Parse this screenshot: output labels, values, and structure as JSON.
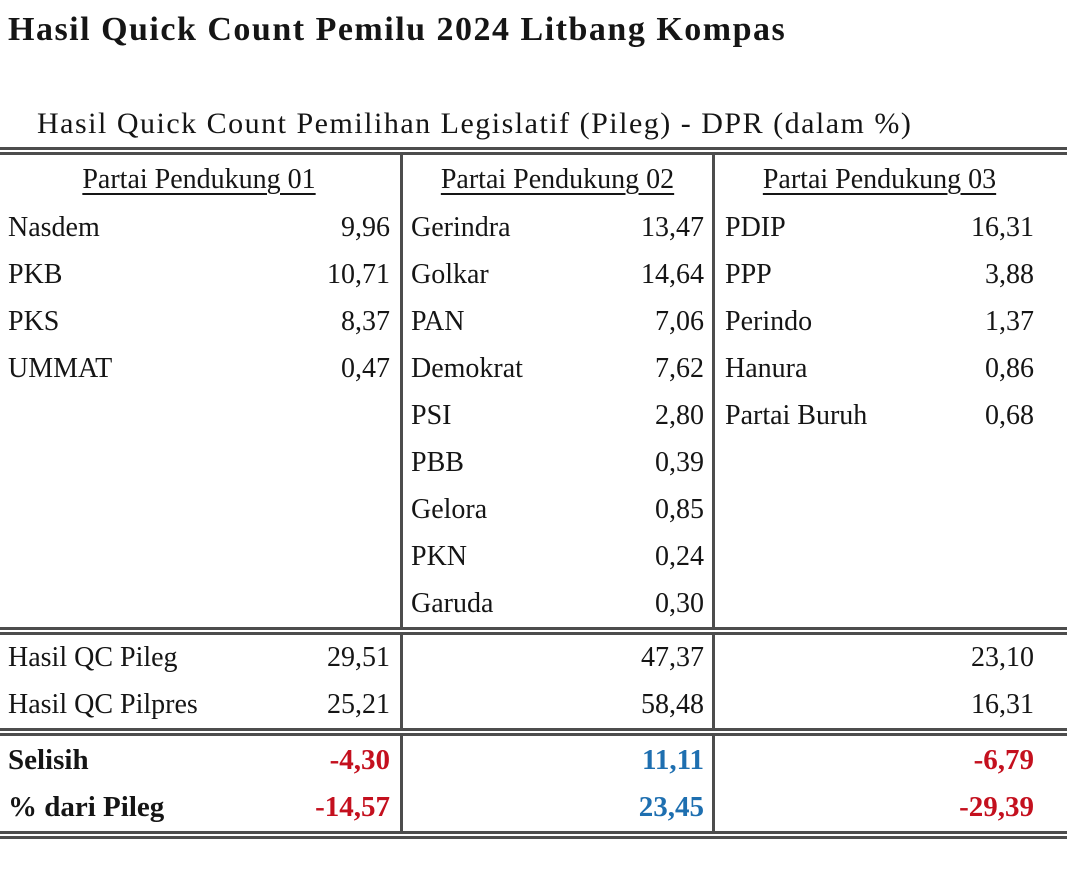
{
  "page_title": "Hasil Quick Count Pemilu 2024 Litbang Kompas",
  "table_title": "Hasil Quick Count Pemilihan Legislatif (Pileg) - DPR (dalam %)",
  "summary_labels": {
    "qc_pileg": "Hasil QC Pileg",
    "qc_pilpres": "Hasil QC Pilpres",
    "selisih": "Selisih",
    "pct_dari_pileg": "% dari Pileg"
  },
  "colors": {
    "negative": "#c4101e",
    "positive": "#1e6fb0",
    "rule": "#4d4d4d",
    "text": "#151515"
  },
  "columns": [
    {
      "header": "Partai Pendukung 01",
      "parties": [
        {
          "name": "Nasdem",
          "value": "9,96"
        },
        {
          "name": "PKB",
          "value": "10,71"
        },
        {
          "name": "PKS",
          "value": "8,37"
        },
        {
          "name": "UMMAT",
          "value": "0,47"
        }
      ],
      "qc_pileg": "29,51",
      "qc_pilpres": "25,21",
      "selisih": "-4,30",
      "pct_dari_pileg": "-14,57",
      "trend": "negative"
    },
    {
      "header": "Partai Pendukung 02",
      "parties": [
        {
          "name": "Gerindra",
          "value": "13,47"
        },
        {
          "name": "Golkar",
          "value": "14,64"
        },
        {
          "name": "PAN",
          "value": "7,06"
        },
        {
          "name": "Demokrat",
          "value": "7,62"
        },
        {
          "name": "PSI",
          "value": "2,80"
        },
        {
          "name": "PBB",
          "value": "0,39"
        },
        {
          "name": "Gelora",
          "value": "0,85"
        },
        {
          "name": "PKN",
          "value": "0,24"
        },
        {
          "name": "Garuda",
          "value": "0,30"
        }
      ],
      "qc_pileg": "47,37",
      "qc_pilpres": "58,48",
      "selisih": "11,11",
      "pct_dari_pileg": "23,45",
      "trend": "positive"
    },
    {
      "header": "Partai Pendukung 03",
      "parties": [
        {
          "name": "PDIP",
          "value": "16,31"
        },
        {
          "name": "PPP",
          "value": "3,88"
        },
        {
          "name": "Perindo",
          "value": "1,37"
        },
        {
          "name": "Hanura",
          "value": "0,86"
        },
        {
          "name": "Partai Buruh",
          "value": "0,68"
        }
      ],
      "qc_pileg": "23,10",
      "qc_pilpres": "16,31",
      "selisih": "-6,79",
      "pct_dari_pileg": "-29,39",
      "trend": "negative"
    }
  ]
}
